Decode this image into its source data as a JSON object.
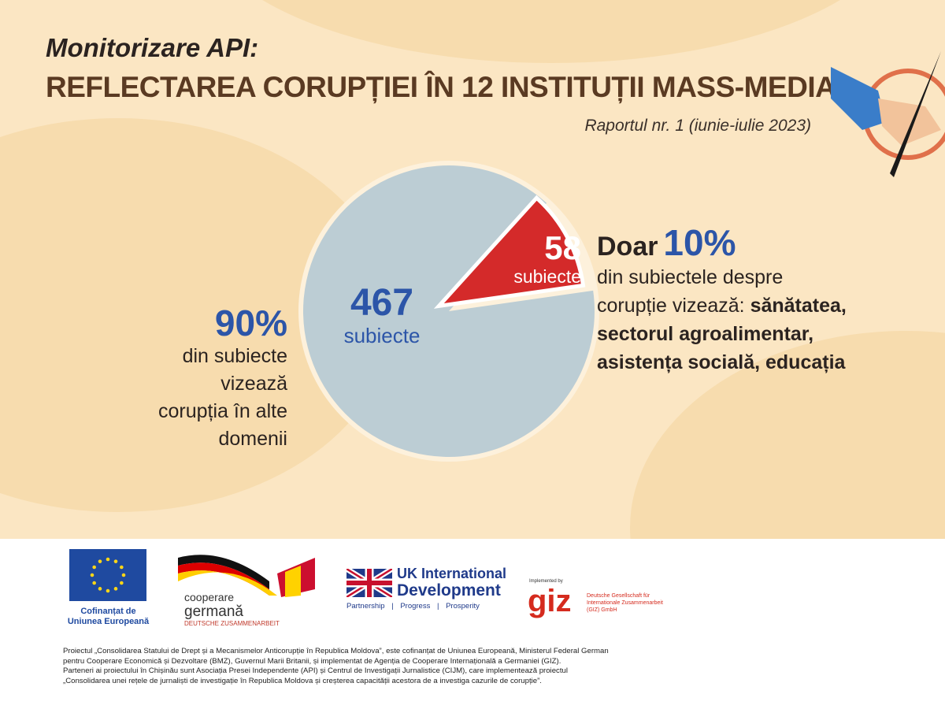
{
  "header": {
    "kicker": "Monitorizare API:",
    "title": "REFLECTAREA CORUPȚIEI ÎN 12 INSTITUȚII MASS-MEDIA",
    "report": "Raportul nr. 1 (iunie-iulie 2023)"
  },
  "chart_data": {
    "type": "pie",
    "title": "Reflectarea corupției în 12 instituții mass-media",
    "slices": [
      {
        "label": "alte domenii",
        "value": 467,
        "percent": 90,
        "unit": "subiecte",
        "color": "#bccdd4"
      },
      {
        "label": "sănătatea, sectorul agroalimentar, asistența socială, educația",
        "value": 58,
        "percent": 10,
        "unit": "subiecte",
        "color": "#d42a2a"
      }
    ]
  },
  "slices": {
    "big_value": "467",
    "big_unit": "subiecte",
    "small_value": "58",
    "small_unit": "subiecte"
  },
  "left_note": {
    "pct": "90%",
    "l1": "din subiecte",
    "l2": "vizează",
    "l3": "corupția în alte",
    "l4": "domenii"
  },
  "right_note": {
    "doar": "Doar",
    "pct": "10%",
    "l1": "din subiectele despre",
    "l2": "corupție vizează:",
    "b1": "sănătatea,",
    "b2": "sectorul agroalimentar,",
    "b3": "asistența socială, educația"
  },
  "logos": {
    "eu": "Cofinanțat de Uniunea Europeană",
    "de1": "cooperare",
    "de2": "germană",
    "de3": "DEUTSCHE ZUSAMMENARBEIT",
    "uk1": "UK International",
    "uk2": "Development",
    "uk3": "Partnership | Progress | Prosperity",
    "giz_by": "Implemented by",
    "giz": "giz",
    "giz_full": "Deutsche Gesellschaft für Internationale Zusammenarbeit (GIZ) GmbH"
  },
  "footer": {
    "l1": "Proiectul „Consolidarea Statului de Drept și a Mecanismelor Anticorupție în Republica Moldova”, este cofinanțat de Uniunea Europeană, Ministerul Federal German",
    "l2": "pentru Cooperare Economică și Dezvoltare (BMZ), Guvernul Marii Britanii, și implementat de Agenția de Cooperare Internațională a Germaniei (GIZ).",
    "l3": "Parteneri ai proiectului în Chișinău sunt Asociația Presei Independente (API) și Centrul de Investigații Jurnalistice (CIJM), care implementează proiectul",
    "l4": "„Consolidarea unei rețele de jurnaliști de investigație în Republica Moldova și creșterea capacității acestora de a investiga cazurile de corupție”."
  }
}
